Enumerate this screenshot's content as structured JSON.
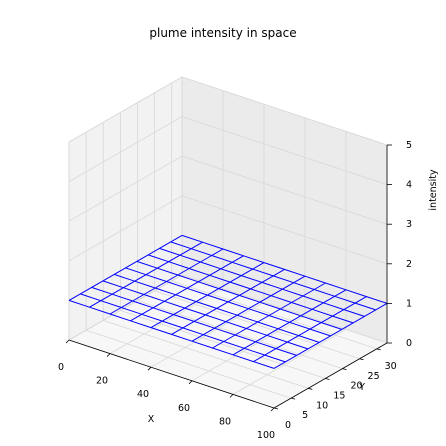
{
  "chart_data": {
    "type": "wireframe_3d",
    "title": "plume intensity in space",
    "xlabel": "X",
    "ylabel": "Y",
    "zlabel": "intensity",
    "xlim": [
      0,
      100
    ],
    "ylim": [
      0,
      33
    ],
    "zlim": [
      0,
      5
    ],
    "x_ticks": [
      "0",
      "20",
      "40",
      "60",
      "80",
      "100"
    ],
    "y_ticks": [
      "0",
      "5",
      "10",
      "15",
      "20",
      "25",
      "30"
    ],
    "z_ticks": [
      "0",
      "1",
      "2",
      "3",
      "4",
      "5"
    ],
    "grid": true,
    "surface": {
      "x_grid": [
        0,
        10,
        20,
        30,
        40,
        50,
        60,
        70,
        80,
        90,
        100
      ],
      "y_grid": [
        0,
        3.3,
        6.6,
        9.9,
        13.2,
        16.5,
        19.8,
        23.1,
        26.4,
        29.7,
        33
      ],
      "z_value": 1,
      "color": "#0000ff"
    },
    "pane_colors": {
      "left": "#f2f2f2",
      "back": "#ebebeb",
      "floor": "#f7f7f7"
    }
  }
}
